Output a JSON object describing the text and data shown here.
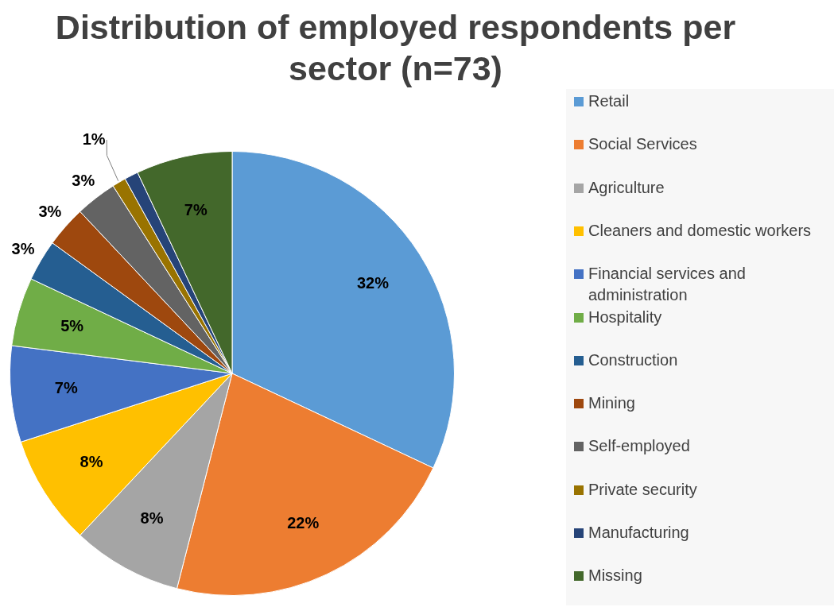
{
  "chart_data": {
    "type": "pie",
    "title": "Distribution of employed respondents per sector (n=73)",
    "categories": [
      "Retail",
      "Social Services",
      "Agriculture",
      "Cleaners and domestic workers",
      "Financial services and administration",
      "Hospitality",
      "Construction",
      "Mining",
      "Self-employed",
      "Private security",
      "Manufacturing",
      "Missing"
    ],
    "values": [
      32,
      22,
      8,
      8,
      7,
      5,
      3,
      3,
      3,
      1,
      1,
      7
    ],
    "value_labels": [
      "32%",
      "22%",
      "8%",
      "8%",
      "7%",
      "5%",
      "3%",
      "3%",
      "3%",
      "1%",
      null,
      "7%"
    ],
    "colors": [
      "#5b9bd5",
      "#ed7d31",
      "#a5a5a5",
      "#ffc000",
      "#4472c4",
      "#70ad47",
      "#255e91",
      "#9e480e",
      "#636363",
      "#997300",
      "#264478",
      "#43682b"
    ],
    "legend": "right"
  }
}
